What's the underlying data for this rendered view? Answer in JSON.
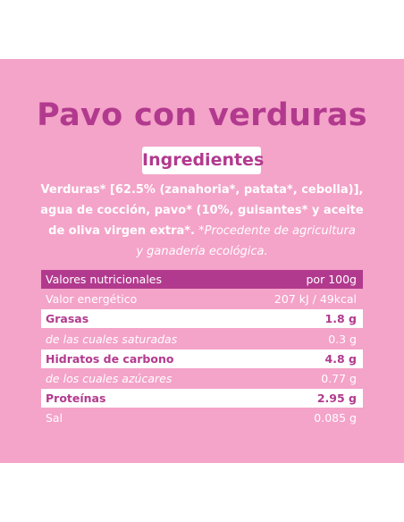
{
  "title": "Pavo con verduras",
  "ingredients": {
    "heading": "Ingredientes",
    "line1": "Verduras* [62.5% (zanahoria*, patata*, cebolla)],",
    "line2": "agua de cocción, pavo* (10%, guisantes* y aceite",
    "line3_bold": "de oliva virgen extra*.",
    "line3_italic": " *Procedente de agricultura",
    "line4_italic": "y ganadería ecológica."
  },
  "nutrition": {
    "header": {
      "label": "Valores nutricionales",
      "value": "por 100g"
    },
    "rows": [
      {
        "label": "Valor energético",
        "value": "207 kJ / 49kcal",
        "style": "light"
      },
      {
        "label": "Grasas",
        "value": "1.8 g",
        "style": "white"
      },
      {
        "label": "de las cuales saturadas",
        "value": "0.3 g",
        "style": "sub"
      },
      {
        "label": "Hidratos de carbono",
        "value": "4.8 g",
        "style": "white"
      },
      {
        "label": "de los cuales azúcares",
        "value": "0.77 g",
        "style": "sub"
      },
      {
        "label": "Proteínas",
        "value": "2.95 g",
        "style": "white"
      },
      {
        "label": "Sal",
        "value": "0.085 g",
        "style": "light"
      }
    ]
  },
  "colors": {
    "background": "#f4a3c9",
    "accent": "#b23a8e",
    "page": "#ffffff"
  }
}
